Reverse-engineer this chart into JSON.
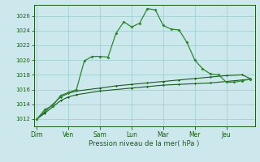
{
  "xlabel": "Pression niveau de la mer( hPa )",
  "bg_color": "#cce8ec",
  "grid_color": "#99cccc",
  "line_color_dark": "#1a5c1a",
  "line_color_light": "#2d882d",
  "yticks": [
    1012,
    1014,
    1016,
    1018,
    1020,
    1022,
    1024,
    1026
  ],
  "day_labels": [
    "Dim",
    "Ven",
    "Sam",
    "Lun",
    "Mar",
    "Mer",
    "Jeu"
  ],
  "day_positions": [
    0,
    2,
    4,
    6,
    8,
    10,
    12
  ],
  "xlim": [
    -0.2,
    13.8
  ],
  "ylim": [
    1011.0,
    1027.5
  ],
  "series_flat1": {
    "x": [
      0,
      0.5,
      1.5,
      2.0,
      2.5,
      4.0,
      6.0,
      7.0,
      8.0,
      9.0,
      10.0,
      11.0,
      12.0,
      13.0,
      13.5
    ],
    "y": [
      1012.0,
      1012.8,
      1014.5,
      1015.0,
      1015.3,
      1015.8,
      1016.2,
      1016.4,
      1016.6,
      1016.7,
      1016.8,
      1016.9,
      1017.1,
      1017.3,
      1017.4
    ]
  },
  "series_flat2": {
    "x": [
      0,
      0.5,
      1.5,
      2.0,
      2.5,
      4.0,
      5.0,
      6.0,
      7.0,
      8.0,
      9.0,
      10.0,
      11.0,
      12.0,
      13.0,
      13.5
    ],
    "y": [
      1012.0,
      1013.0,
      1015.0,
      1015.5,
      1015.8,
      1016.2,
      1016.5,
      1016.7,
      1016.9,
      1017.1,
      1017.3,
      1017.5,
      1017.7,
      1017.9,
      1018.0,
      1017.5
    ]
  },
  "series_main": {
    "x": [
      0,
      0.5,
      1.0,
      1.5,
      2.0,
      2.5,
      3.0,
      3.5,
      4.0,
      4.5,
      5.0,
      5.5,
      6.0,
      6.5,
      7.0,
      7.5,
      8.0,
      8.5,
      9.0,
      9.5,
      10.0,
      10.5,
      11.0,
      11.5,
      12.0,
      12.5,
      13.0,
      13.5
    ],
    "y": [
      1012.0,
      1013.3,
      1013.8,
      1015.2,
      1015.6,
      1016.0,
      1019.9,
      1020.5,
      1020.5,
      1020.4,
      1023.6,
      1025.2,
      1024.5,
      1025.0,
      1027.0,
      1026.8,
      1024.7,
      1024.2,
      1024.1,
      1022.4,
      1020.0,
      1018.8,
      1018.1,
      1018.0,
      1017.0,
      1017.0,
      1017.2,
      1017.4
    ]
  }
}
